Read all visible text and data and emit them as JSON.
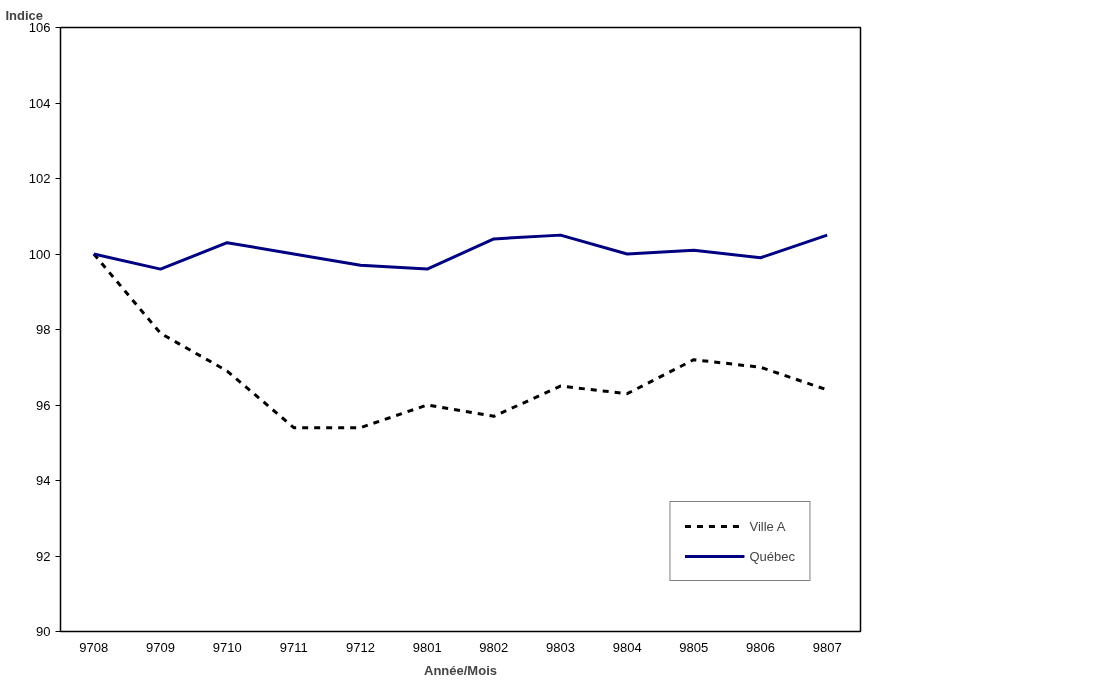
{
  "chart_data": {
    "type": "line",
    "ylabel": "Indice",
    "xlabel": "Année/Mois",
    "categories": [
      "9708",
      "9709",
      "9710",
      "9711",
      "9712",
      "9801",
      "9802",
      "9803",
      "9804",
      "9805",
      "9806",
      "9807"
    ],
    "series": [
      {
        "name": "Ville A",
        "color": "#000000",
        "line_style": "dashed",
        "values": [
          100.0,
          97.9,
          96.9,
          95.4,
          95.4,
          96.0,
          95.7,
          96.5,
          96.3,
          97.2,
          97.0,
          96.4
        ]
      },
      {
        "name": "Québec",
        "color": "#000080",
        "line_style": "solid",
        "values": [
          100.0,
          99.6,
          100.3,
          100.0,
          99.7,
          99.6,
          100.4,
          100.5,
          100.0,
          100.1,
          99.9,
          100.5
        ]
      }
    ],
    "ylim": [
      90,
      106
    ],
    "yticks": [
      90,
      92,
      94,
      96,
      98,
      100,
      102,
      104,
      106
    ],
    "grid": false,
    "legend": "bottom right",
    "marker": "none"
  }
}
